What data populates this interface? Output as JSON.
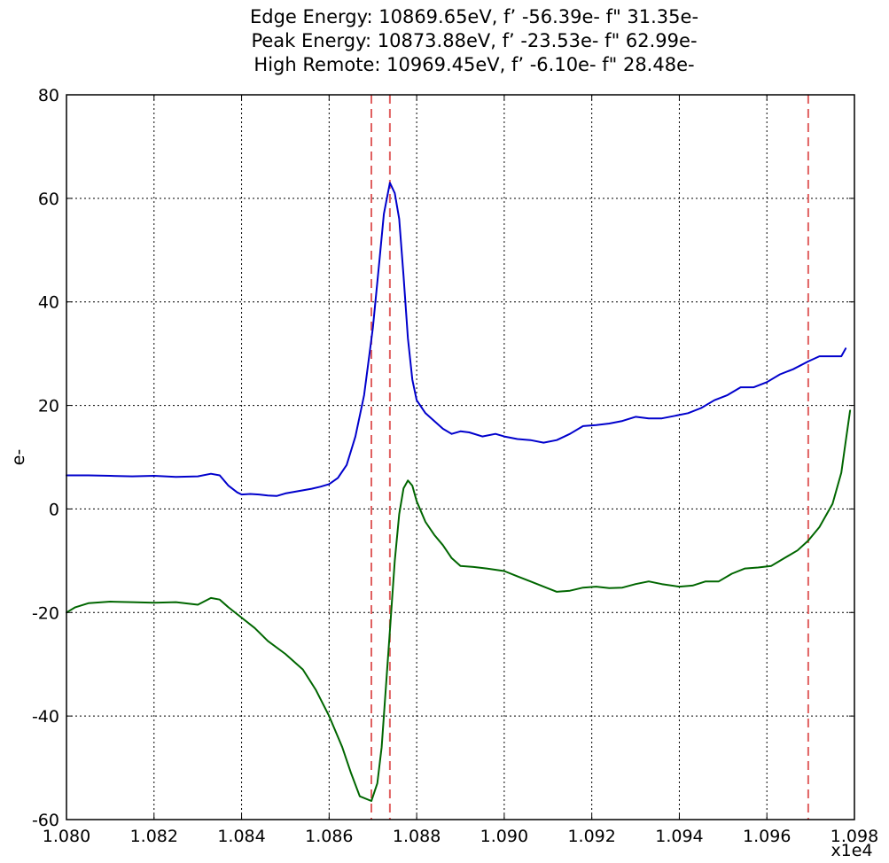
{
  "chart_data": {
    "type": "line",
    "title_lines": [
      "Edge Energy: 10869.65eV, f’ -56.39e- f\" 31.35e-",
      "Peak Energy: 10873.88eV, f’ -23.53e- f\" 62.99e-",
      "High Remote: 10969.45eV, f’ -6.10e- f\" 28.48e-"
    ],
    "xlabel": "",
    "ylabel": "e-",
    "x_scale_label": "x1e4",
    "xlim": [
      10800,
      10980
    ],
    "ylim": [
      -60,
      80
    ],
    "x_ticks": [
      10800,
      10820,
      10840,
      10860,
      10880,
      10900,
      10920,
      10940,
      10960,
      10980
    ],
    "x_tick_labels": [
      "1.080",
      "1.082",
      "1.084",
      "1.086",
      "1.088",
      "1.090",
      "1.092",
      "1.094",
      "1.096",
      "1.098"
    ],
    "y_ticks": [
      -60,
      -40,
      -20,
      0,
      20,
      40,
      60,
      80
    ],
    "y_tick_labels": [
      "-60",
      "-40",
      "-20",
      "0",
      "20",
      "40",
      "60",
      "80"
    ],
    "grid": true,
    "vlines": [
      {
        "x": 10869.65,
        "color": "#e06060"
      },
      {
        "x": 10873.88,
        "color": "#e06060"
      },
      {
        "x": 10969.45,
        "color": "#e06060"
      }
    ],
    "series": [
      {
        "color": "#0000cc",
        "points": [
          [
            10800,
            6.5
          ],
          [
            10805,
            6.5
          ],
          [
            10810,
            6.4
          ],
          [
            10815,
            6.3
          ],
          [
            10820,
            6.4
          ],
          [
            10825,
            6.2
          ],
          [
            10830,
            6.3
          ],
          [
            10833,
            6.8
          ],
          [
            10835,
            6.5
          ],
          [
            10837,
            4.5
          ],
          [
            10839,
            3.2
          ],
          [
            10840,
            2.8
          ],
          [
            10842,
            2.9
          ],
          [
            10844,
            2.8
          ],
          [
            10846,
            2.6
          ],
          [
            10848,
            2.5
          ],
          [
            10850,
            3.0
          ],
          [
            10852,
            3.3
          ],
          [
            10854,
            3.6
          ],
          [
            10856,
            3.9
          ],
          [
            10858,
            4.3
          ],
          [
            10860,
            4.8
          ],
          [
            10862,
            6.0
          ],
          [
            10864,
            8.5
          ],
          [
            10866,
            14.0
          ],
          [
            10868,
            22.0
          ],
          [
            10870,
            35.0
          ],
          [
            10871.5,
            48.0
          ],
          [
            10872.5,
            57.0
          ],
          [
            10873.88,
            63.0
          ],
          [
            10875,
            61.0
          ],
          [
            10876,
            56.0
          ],
          [
            10877,
            45.0
          ],
          [
            10878,
            33.0
          ],
          [
            10879,
            25.0
          ],
          [
            10880,
            21.0
          ],
          [
            10882,
            18.5
          ],
          [
            10884,
            17.0
          ],
          [
            10886,
            15.5
          ],
          [
            10888,
            14.5
          ],
          [
            10890,
            15.0
          ],
          [
            10892,
            14.8
          ],
          [
            10895,
            14.0
          ],
          [
            10898,
            14.5
          ],
          [
            10900,
            14.0
          ],
          [
            10903,
            13.5
          ],
          [
            10906,
            13.3
          ],
          [
            10909,
            12.8
          ],
          [
            10912,
            13.3
          ],
          [
            10915,
            14.5
          ],
          [
            10918,
            16.0
          ],
          [
            10921,
            16.2
          ],
          [
            10924,
            16.5
          ],
          [
            10927,
            17.0
          ],
          [
            10930,
            17.8
          ],
          [
            10933,
            17.5
          ],
          [
            10936,
            17.5
          ],
          [
            10939,
            18.0
          ],
          [
            10942,
            18.5
          ],
          [
            10945,
            19.5
          ],
          [
            10948,
            21.0
          ],
          [
            10951,
            22.0
          ],
          [
            10954,
            23.5
          ],
          [
            10957,
            23.5
          ],
          [
            10960,
            24.5
          ],
          [
            10963,
            26.0
          ],
          [
            10966,
            27.0
          ],
          [
            10969.45,
            28.5
          ],
          [
            10972,
            29.5
          ],
          [
            10975,
            29.5
          ],
          [
            10977,
            29.5
          ],
          [
            10978,
            31.0
          ]
        ]
      },
      {
        "color": "#006600",
        "points": [
          [
            10800,
            -20.0
          ],
          [
            10802,
            -19.0
          ],
          [
            10805,
            -18.2
          ],
          [
            10810,
            -17.9
          ],
          [
            10815,
            -18.0
          ],
          [
            10820,
            -18.1
          ],
          [
            10825,
            -18.0
          ],
          [
            10830,
            -18.5
          ],
          [
            10833,
            -17.2
          ],
          [
            10835,
            -17.5
          ],
          [
            10837,
            -19.0
          ],
          [
            10840,
            -21.0
          ],
          [
            10843,
            -23.0
          ],
          [
            10846,
            -25.5
          ],
          [
            10850,
            -28.0
          ],
          [
            10854,
            -31.0
          ],
          [
            10857,
            -35.0
          ],
          [
            10860,
            -40.0
          ],
          [
            10863,
            -46.0
          ],
          [
            10865,
            -51.0
          ],
          [
            10867,
            -55.5
          ],
          [
            10869.65,
            -56.4
          ],
          [
            10871,
            -53.0
          ],
          [
            10872,
            -46.0
          ],
          [
            10873.88,
            -23.5
          ],
          [
            10875,
            -10.0
          ],
          [
            10876,
            -1.0
          ],
          [
            10877,
            4.0
          ],
          [
            10878,
            5.5
          ],
          [
            10879,
            4.5
          ],
          [
            10880,
            1.5
          ],
          [
            10882,
            -2.5
          ],
          [
            10884,
            -5.0
          ],
          [
            10886,
            -7.0
          ],
          [
            10888,
            -9.5
          ],
          [
            10890,
            -11.0
          ],
          [
            10893,
            -11.2
          ],
          [
            10896,
            -11.5
          ],
          [
            10900,
            -12.0
          ],
          [
            10903,
            -13.0
          ],
          [
            10906,
            -14.0
          ],
          [
            10909,
            -15.0
          ],
          [
            10912,
            -16.0
          ],
          [
            10915,
            -15.8
          ],
          [
            10918,
            -15.2
          ],
          [
            10921,
            -15.0
          ],
          [
            10924,
            -15.3
          ],
          [
            10927,
            -15.2
          ],
          [
            10930,
            -14.5
          ],
          [
            10933,
            -14.0
          ],
          [
            10936,
            -14.5
          ],
          [
            10940,
            -15.0
          ],
          [
            10943,
            -14.8
          ],
          [
            10946,
            -14.0
          ],
          [
            10949,
            -14.0
          ],
          [
            10952,
            -12.5
          ],
          [
            10955,
            -11.5
          ],
          [
            10958,
            -11.3
          ],
          [
            10961,
            -11.0
          ],
          [
            10964,
            -9.5
          ],
          [
            10967,
            -8.0
          ],
          [
            10969.45,
            -6.1
          ],
          [
            10972,
            -3.5
          ],
          [
            10975,
            1.0
          ],
          [
            10977,
            7.0
          ],
          [
            10978,
            13.0
          ],
          [
            10979,
            19.0
          ]
        ]
      }
    ]
  }
}
